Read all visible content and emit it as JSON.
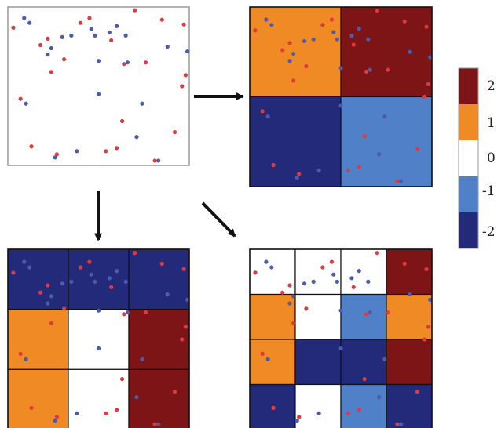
{
  "colors": {
    "point_red": "#e03a3e",
    "point_blue": "#4a5bb0",
    "grid_line": "#111111",
    "frame_gray": "#9a9a9a",
    "arrow": "#111111"
  },
  "legend": {
    "levels": [
      {
        "label": "2",
        "value": 2,
        "color": "#7d1416"
      },
      {
        "label": "1",
        "value": 1,
        "color": "#f08a24"
      },
      {
        "label": "0",
        "value": 0,
        "color": "#ffffff"
      },
      {
        "label": "-1",
        "value": -1,
        "color": "#4f80c8"
      },
      {
        "label": "-2",
        "value": -2,
        "color": "#232a7a"
      }
    ]
  },
  "raw_panel": {
    "name": "point-pattern-panel",
    "points_red": [
      [
        0.03,
        0.87
      ],
      [
        0.22,
        0.8
      ],
      [
        0.31,
        0.67
      ],
      [
        0.45,
        0.93
      ],
      [
        0.57,
        0.79
      ],
      [
        0.64,
        0.64
      ],
      [
        0.76,
        0.65
      ],
      [
        0.85,
        0.92
      ],
      [
        0.96,
        0.5
      ],
      [
        0.98,
        0.57
      ],
      [
        0.92,
        0.21
      ],
      [
        0.07,
        0.42
      ],
      [
        0.24,
        0.59
      ],
      [
        0.18,
        0.76
      ],
      [
        0.7,
        0.98
      ],
      [
        0.13,
        0.12
      ],
      [
        0.97,
        0.89
      ],
      [
        0.54,
        0.09
      ],
      [
        0.4,
        0.9
      ],
      [
        0.81,
        0.03
      ],
      [
        0.27,
        0.07
      ],
      [
        0.63,
        0.28
      ],
      [
        0.6,
        0.11
      ]
    ],
    "points_blue": [
      [
        0.09,
        0.93
      ],
      [
        0.12,
        0.9
      ],
      [
        0.35,
        0.82
      ],
      [
        0.46,
        0.86
      ],
      [
        0.5,
        0.66
      ],
      [
        0.48,
        0.82
      ],
      [
        0.6,
        0.88
      ],
      [
        0.88,
        0.75
      ],
      [
        0.99,
        0.72
      ],
      [
        0.74,
        0.39
      ],
      [
        0.1,
        0.39
      ],
      [
        0.38,
        0.09
      ],
      [
        0.71,
        0.18
      ],
      [
        0.83,
        0.03
      ],
      [
        0.66,
        0.65
      ],
      [
        0.22,
        0.7
      ],
      [
        0.5,
        0.45
      ],
      [
        0.24,
        0.74
      ],
      [
        0.3,
        0.81
      ],
      [
        0.65,
        0.82
      ],
      [
        0.26,
        0.05
      ],
      [
        0.56,
        0.84
      ]
    ]
  },
  "grids": [
    {
      "name": "grid-2x2",
      "rows": 2,
      "cols": 2,
      "values": [
        [
          1,
          2
        ],
        [
          -2,
          -1
        ]
      ]
    },
    {
      "name": "grid-3x3",
      "rows": 3,
      "cols": 3,
      "values": [
        [
          -2,
          -2,
          -2
        ],
        [
          1,
          0,
          2
        ],
        [
          1,
          0,
          2
        ]
      ]
    },
    {
      "name": "grid-4x4",
      "rows": 4,
      "cols": 4,
      "values": [
        [
          0,
          0,
          0,
          2
        ],
        [
          1,
          0,
          -1,
          1
        ],
        [
          1,
          -2,
          -2,
          2
        ],
        [
          -2,
          0,
          -1,
          -2
        ]
      ]
    }
  ]
}
